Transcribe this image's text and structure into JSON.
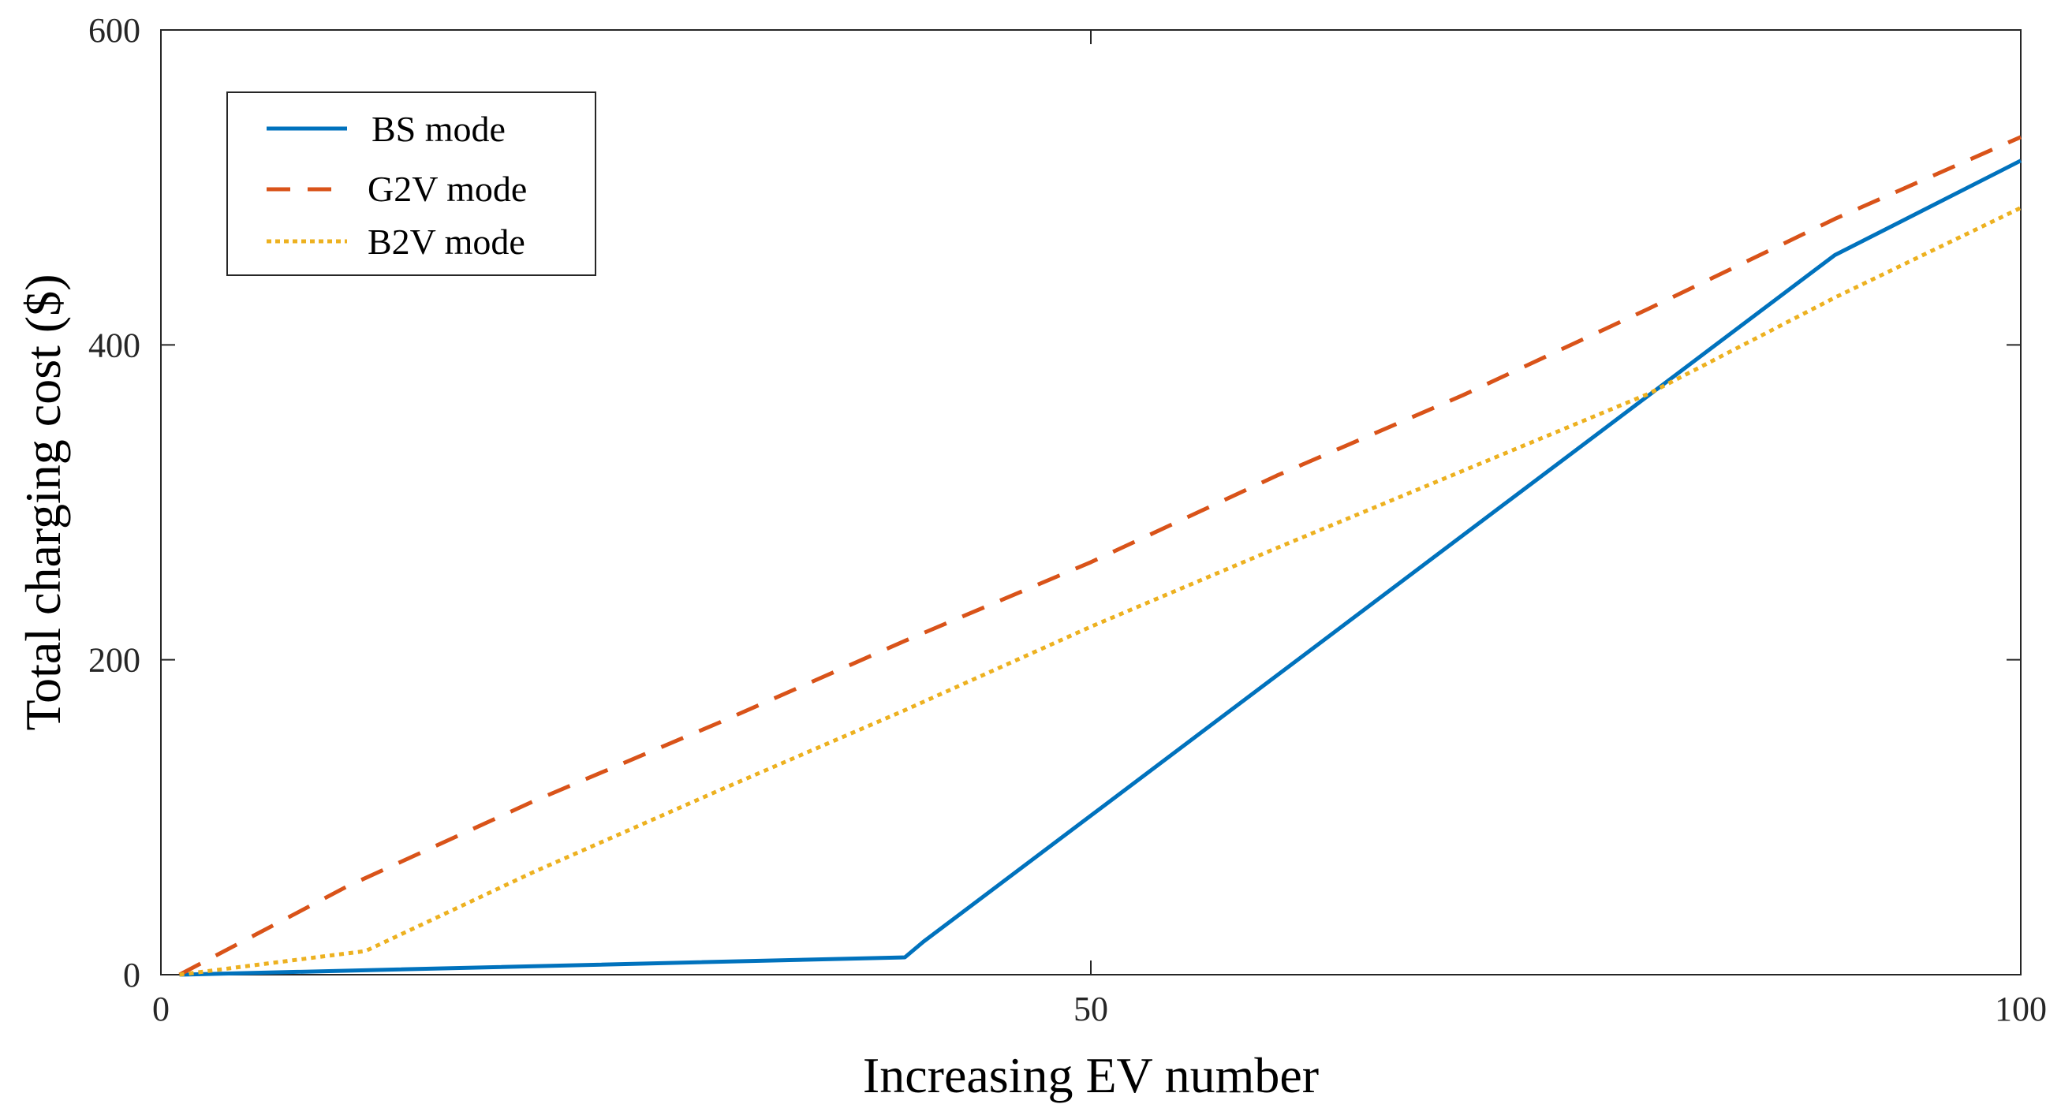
{
  "chart_data": {
    "type": "line",
    "title": "",
    "xlabel": "Increasing EV number",
    "ylabel": "Total charging cost ($)",
    "xlim": [
      0,
      100
    ],
    "ylim": [
      0,
      600
    ],
    "xticks": [
      0,
      50,
      100
    ],
    "xtick_labels": [
      "0",
      "50",
      "100"
    ],
    "yticks": [
      0,
      200,
      400,
      600
    ],
    "ytick_labels": [
      "0",
      "200",
      "400",
      "600"
    ],
    "grid": false,
    "box": true,
    "legend_position": "top-left",
    "series": [
      {
        "name": "BS mode",
        "color": "#0072BD",
        "style": "solid",
        "x": [
          1,
          40,
          41,
          50,
          60,
          70,
          80,
          90,
          100
        ],
        "y": [
          0,
          11,
          21,
          101,
          190,
          279,
          368,
          457,
          517
        ]
      },
      {
        "name": "G2V mode",
        "color": "#D95319",
        "style": "dashed",
        "x": [
          1,
          10,
          20,
          30,
          40,
          50,
          60,
          70,
          80,
          90,
          100
        ],
        "y": [
          0,
          56,
          110,
          160,
          212,
          262,
          317,
          368,
          423,
          480,
          532
        ]
      },
      {
        "name": "B2V mode",
        "color": "#EDB120",
        "style": "dotted",
        "x": [
          1,
          11,
          20,
          30,
          40,
          50,
          60,
          70,
          80,
          90,
          100
        ],
        "y": [
          0,
          15,
          65,
          117,
          168,
          221,
          271,
          320,
          369,
          430,
          487
        ]
      }
    ],
    "legend": {
      "entries": [
        "BS mode",
        "G2V mode",
        "B2V mode"
      ]
    }
  }
}
